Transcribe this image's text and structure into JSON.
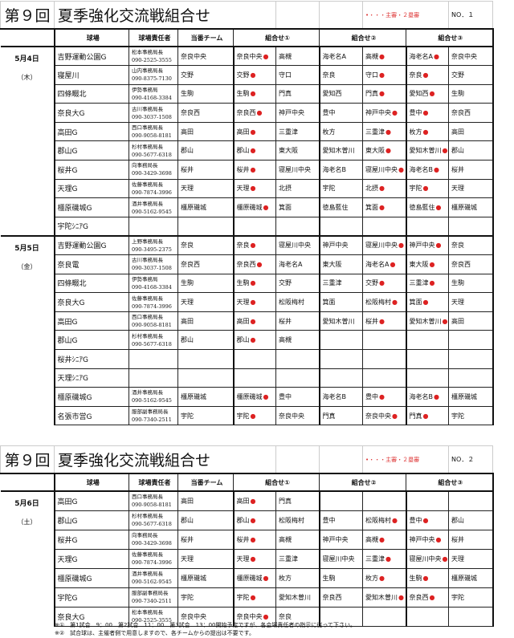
{
  "sheets": [
    {
      "round": "第９回",
      "title": "夏季強化交流戦組合せ",
      "legend_mark": "•",
      "legend": "・・・主審・２塁審",
      "no": "NO．１",
      "headers": [
        "球場",
        "球場責任者",
        "当番チーム",
        "組合せ①",
        "組合せ②",
        "組合せ③"
      ],
      "days": [
        {
          "date": "5月4日",
          "weekday": "（木）",
          "rows": [
            {
              "venue": "吉野運動公園G",
              "mgr": "松本事務局長",
              "phone": "090-2525-3555",
              "duty": "奈良中央",
              "games": [
                {
                  "t": "奈良中央",
                  "u": true
                },
                {
                  "t": "高槻"
                },
                {
                  "t": "海老名A"
                },
                {
                  "t": "高槻",
                  "u": true
                },
                {
                  "t": "海老名A",
                  "u": true
                },
                {
                  "t": "奈良中央"
                }
              ]
            },
            {
              "venue": "寝屋川",
              "mgr": "山内事務局長",
              "phone": "090-8375-7130",
              "duty": "交野",
              "games": [
                {
                  "t": "交野",
                  "u": true
                },
                {
                  "t": "守口"
                },
                {
                  "t": "奈良"
                },
                {
                  "t": "守口",
                  "u": true
                },
                {
                  "t": "奈良",
                  "u": true
                },
                {
                  "t": "交野"
                }
              ]
            },
            {
              "venue": "四條畷北",
              "mgr": "伊勢事務局",
              "phone": "090-4168-3384",
              "duty": "生駒",
              "games": [
                {
                  "t": "生駒",
                  "u": true
                },
                {
                  "t": "門真"
                },
                {
                  "t": "愛知西"
                },
                {
                  "t": "門真",
                  "u": true
                },
                {
                  "t": "愛知西",
                  "u": true
                },
                {
                  "t": "生駒"
                }
              ]
            },
            {
              "venue": "奈良大G",
              "mgr": "古川事務局長",
              "phone": "090-3037-1508",
              "duty": "奈良西",
              "games": [
                {
                  "t": "奈良西",
                  "u": true
                },
                {
                  "t": "神戸中央"
                },
                {
                  "t": "豊中"
                },
                {
                  "t": "神戸中央",
                  "u": true
                },
                {
                  "t": "豊中",
                  "u": true
                },
                {
                  "t": "奈良西"
                }
              ]
            },
            {
              "venue": "高田G",
              "mgr": "西口事務局長",
              "phone": "090-9058-8181",
              "duty": "高田",
              "games": [
                {
                  "t": "高田",
                  "u": true
                },
                {
                  "t": "三重津"
                },
                {
                  "t": "枚方"
                },
                {
                  "t": "三重津",
                  "u": true
                },
                {
                  "t": "枚方",
                  "u": true
                },
                {
                  "t": "高田"
                }
              ]
            },
            {
              "venue": "郡山G",
              "mgr": "杉村事務局長",
              "phone": "090-5677-6318",
              "duty": "郡山",
              "games": [
                {
                  "t": "郡山",
                  "u": true
                },
                {
                  "t": "東大阪"
                },
                {
                  "t": "愛知木曽川"
                },
                {
                  "t": "東大阪",
                  "u": true
                },
                {
                  "t": "愛知木曽川",
                  "u": true
                },
                {
                  "t": "郡山"
                }
              ]
            },
            {
              "venue": "桜井G",
              "mgr": "向事務局長",
              "phone": "090-3429-3698",
              "duty": "桜井",
              "games": [
                {
                  "t": "桜井",
                  "u": true
                },
                {
                  "t": "寝屋川中央"
                },
                {
                  "t": "海老名B"
                },
                {
                  "t": "寝屋川中央",
                  "u": true
                },
                {
                  "t": "海老名B",
                  "u": true
                },
                {
                  "t": "桜井"
                }
              ]
            },
            {
              "venue": "天理G",
              "mgr": "佐藤事務局長",
              "phone": "090-7874-3996",
              "duty": "天理",
              "games": [
                {
                  "t": "天理",
                  "u": true
                },
                {
                  "t": "北摂"
                },
                {
                  "t": "宇陀"
                },
                {
                  "t": "北摂",
                  "u": true
                },
                {
                  "t": "宇陀",
                  "u": true
                },
                {
                  "t": "天理"
                }
              ]
            },
            {
              "venue": "橿原磯城G",
              "mgr": "酒井事務局長",
              "phone": "090-5162-9545",
              "duty": "橿原磯城",
              "games": [
                {
                  "t": "橿原磯城",
                  "u": true
                },
                {
                  "t": "箕面"
                },
                {
                  "t": "徳島藍住"
                },
                {
                  "t": "箕面",
                  "u": true
                },
                {
                  "t": "徳島藍住",
                  "u": true
                },
                {
                  "t": "橿原磯城"
                }
              ]
            },
            {
              "venue": "宇陀ｼﾆｱG",
              "games": []
            }
          ]
        },
        {
          "date": "5月5日",
          "weekday": "（金）",
          "rows": [
            {
              "venue": "吉野運動公園G",
              "mgr": "上野事務局長",
              "phone": "090-3495-2375",
              "duty": "奈良",
              "games": [
                {
                  "t": "奈良",
                  "u": true
                },
                {
                  "t": "寝屋川中央"
                },
                {
                  "t": "神戸中央"
                },
                {
                  "t": "寝屋川中央",
                  "u": true
                },
                {
                  "t": "神戸中央",
                  "u": true
                },
                {
                  "t": "奈良"
                }
              ]
            },
            {
              "venue": "奈良電",
              "mgr": "古川事務局長",
              "phone": "090-3037-1508",
              "duty": "奈良西",
              "games": [
                {
                  "t": "奈良西",
                  "u": true
                },
                {
                  "t": "海老名A"
                },
                {
                  "t": "東大阪"
                },
                {
                  "t": "海老名A",
                  "u": true
                },
                {
                  "t": "東大阪",
                  "u": true
                },
                {
                  "t": "奈良西"
                }
              ]
            },
            {
              "venue": "四條畷北",
              "mgr": "伊勢事務局",
              "phone": "090-4168-3384",
              "duty": "生駒",
              "games": [
                {
                  "t": "生駒",
                  "u": true
                },
                {
                  "t": "交野"
                },
                {
                  "t": "三重津"
                },
                {
                  "t": "交野",
                  "u": true
                },
                {
                  "t": "三重津",
                  "u": true
                },
                {
                  "t": "生駒"
                }
              ]
            },
            {
              "venue": "奈良大G",
              "mgr": "佐藤事務局長",
              "phone": "090-7874-3996",
              "duty": "天理",
              "games": [
                {
                  "t": "天理",
                  "u": true
                },
                {
                  "t": "松阪梅村"
                },
                {
                  "t": "箕面"
                },
                {
                  "t": "松阪梅村",
                  "u": true
                },
                {
                  "t": "箕面",
                  "u": true
                },
                {
                  "t": "天理"
                }
              ]
            },
            {
              "venue": "高田G",
              "mgr": "西口事務局長",
              "phone": "090-9058-8181",
              "duty": "高田",
              "games": [
                {
                  "t": "高田",
                  "u": true
                },
                {
                  "t": "桜井"
                },
                {
                  "t": "愛知木曽川"
                },
                {
                  "t": "桜井",
                  "u": true
                },
                {
                  "t": "愛知木曽川",
                  "u": true
                },
                {
                  "t": "高田"
                }
              ]
            },
            {
              "venue": "郡山G",
              "mgr": "杉村事務局長",
              "phone": "090-5677-6318",
              "duty": "郡山",
              "games": [
                {
                  "t": "郡山",
                  "u": true
                },
                {
                  "t": "高槻"
                }
              ]
            },
            {
              "venue": "桜井ｼﾆｱG",
              "games": []
            },
            {
              "venue": "天理ｼﾆｱG",
              "games": []
            },
            {
              "venue": "橿原磯城G",
              "mgr": "酒井事務局長",
              "phone": "090-5162-9545",
              "duty": "橿原磯城",
              "games": [
                {
                  "t": "橿原磯城",
                  "u": true
                },
                {
                  "t": "豊中"
                },
                {
                  "t": "海老名B"
                },
                {
                  "t": "豊中",
                  "u": true
                },
                {
                  "t": "海老名B",
                  "u": true
                },
                {
                  "t": "橿原磯城"
                }
              ]
            },
            {
              "venue": "名張市営G",
              "mgr": "服部副事務局長",
              "phone": "090-7340-2511",
              "duty": "宇陀",
              "games": [
                {
                  "t": "宇陀",
                  "u": true
                },
                {
                  "t": "奈良中央"
                },
                {
                  "t": "門真"
                },
                {
                  "t": "奈良中央",
                  "u": true
                },
                {
                  "t": "門真",
                  "u": true
                },
                {
                  "t": "宇陀"
                }
              ]
            }
          ]
        }
      ]
    },
    {
      "round": "第９回",
      "title": "夏季強化交流戦組合せ",
      "legend_mark": "•",
      "legend": "・・・主審・２塁審",
      "no": "NO．２",
      "headers": [
        "球場",
        "球場責任者",
        "当番チーム",
        "組合せ①",
        "組合せ②",
        "組合せ③"
      ],
      "days": [
        {
          "date": "5月6日",
          "weekday": "（土）",
          "rows": [
            {
              "venue": "高田G",
              "mgr": "西口事務局長",
              "phone": "090-9058-8181",
              "duty": "高田",
              "games": [
                {
                  "t": "高田",
                  "u": true
                },
                {
                  "t": "門真"
                }
              ]
            },
            {
              "venue": "郡山G",
              "mgr": "杉村事務局長",
              "phone": "090-5677-6318",
              "duty": "郡山",
              "games": [
                {
                  "t": "郡山",
                  "u": true
                },
                {
                  "t": "松阪梅村"
                },
                {
                  "t": "豊中"
                },
                {
                  "t": "松阪梅村",
                  "u": true
                },
                {
                  "t": "豊中",
                  "u": true
                },
                {
                  "t": "郡山"
                }
              ]
            },
            {
              "venue": "桜井G",
              "mgr": "向事務局長",
              "phone": "090-3429-3698",
              "duty": "桜井",
              "games": [
                {
                  "t": "桜井",
                  "u": true
                },
                {
                  "t": "高槻"
                },
                {
                  "t": "神戸中央"
                },
                {
                  "t": "高槻",
                  "u": true
                },
                {
                  "t": "神戸中央",
                  "u": true
                },
                {
                  "t": "桜井"
                }
              ]
            },
            {
              "venue": "天理G",
              "mgr": "佐藤事務局長",
              "phone": "090-7874-3996",
              "duty": "天理",
              "games": [
                {
                  "t": "天理",
                  "u": true
                },
                {
                  "t": "三重津"
                },
                {
                  "t": "寝屋川中央"
                },
                {
                  "t": "三重津",
                  "u": true
                },
                {
                  "t": "寝屋川中央",
                  "u": true
                },
                {
                  "t": "天理"
                }
              ]
            },
            {
              "venue": "橿原磯城G",
              "mgr": "酒井事務局長",
              "phone": "090-5162-9545",
              "duty": "橿原磯城",
              "games": [
                {
                  "t": "橿原磯城",
                  "u": true
                },
                {
                  "t": "枚方"
                },
                {
                  "t": "生駒"
                },
                {
                  "t": "枚方",
                  "u": true
                },
                {
                  "t": "生駒",
                  "u": true
                },
                {
                  "t": "橿原磯城"
                }
              ]
            },
            {
              "venue": "宇陀G",
              "mgr": "服部副事務局長",
              "phone": "090-7340-2511",
              "duty": "宇陀",
              "games": [
                {
                  "t": "宇陀",
                  "u": true
                },
                {
                  "t": "愛知木曽川"
                },
                {
                  "t": "奈良西"
                },
                {
                  "t": "愛知木曽川",
                  "u": true
                },
                {
                  "t": "奈良西",
                  "u": true
                },
                {
                  "t": "宇陀"
                }
              ]
            },
            {
              "venue": "奈良大G",
              "mgr": "松本事務局長",
              "phone": "090-2525-3555",
              "duty": "奈良中央",
              "games": [
                {
                  "t": "奈良中央",
                  "u": true
                },
                {
                  "t": "奈良"
                }
              ]
            }
          ]
        }
      ]
    }
  ],
  "footnotes": [
    "※①　第1試合　9：00　第2試合　11：00　第3試合　13：00開始予定ですが、各会場責任者の指示に従って下さい。",
    "※②　試合球は、主催者側で用意しますので、各チームからの提出は不要です。"
  ],
  "colors": {
    "umpire_mark": "#dd2222",
    "legend": "#dd3333"
  }
}
